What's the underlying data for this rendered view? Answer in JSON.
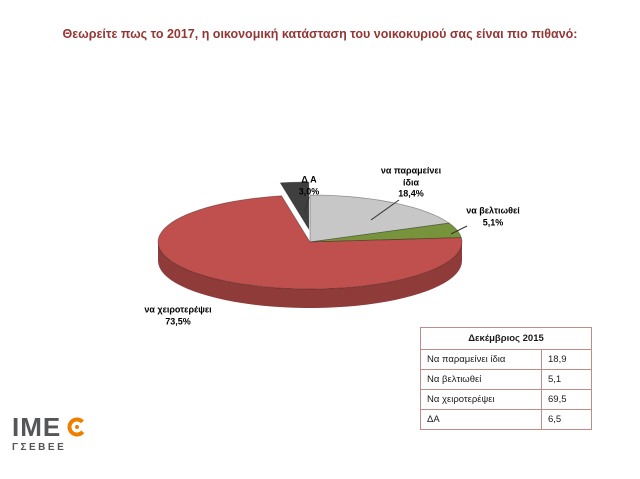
{
  "title": "Θεωρείτε πως το 2017, η οικονομική κατάσταση του νοικοκυριού σας είναι πιο πιθανό:",
  "chart_data": {
    "type": "pie",
    "style": "3d",
    "start_angle": "top",
    "direction": "clockwise",
    "categories": [
      "να παραμείνει ίδια",
      "να βελτιωθεί",
      "να χειροτερέψει",
      "ΔΑ"
    ],
    "values": [
      18.4,
      5.1,
      73.5,
      3.0
    ],
    "percent_labels": [
      "18,4%",
      "5,1%",
      "73,5%",
      "3,0%"
    ],
    "colors": [
      "#C7C7C7",
      "#77933C",
      "#C0504D",
      "#3F3F3F"
    ],
    "side_colors": [
      "#9A9A9A",
      "#4F6228",
      "#8E3B39",
      "#262626"
    ],
    "exploded": [
      false,
      false,
      false,
      true
    ],
    "legend_position": "none",
    "grid": false
  },
  "callouts": {
    "da": "Δ Α\n3,0%",
    "idia": "να παραμείνει\nίδια\n18,4%",
    "veltiothei": "να βελτιωθεί\n5,1%",
    "xeiroterepsei": "να χειροτερέψει\n73,5%"
  },
  "table": {
    "header": "Δεκέμβριος 2015",
    "rows": [
      {
        "label": "Να παραμείνει ίδια",
        "value": "18,9"
      },
      {
        "label": "Να βελτιωθεί",
        "value": "5,1"
      },
      {
        "label": "Να χειροτερέψει",
        "value": "69,5"
      },
      {
        "label": "ΔΑ",
        "value": "6,5"
      }
    ]
  },
  "logo": {
    "top": "IME",
    "bottom": "ΓΣΕΒΕΕ",
    "accent_color": "#EE7F00",
    "text_color": "#55565A"
  }
}
